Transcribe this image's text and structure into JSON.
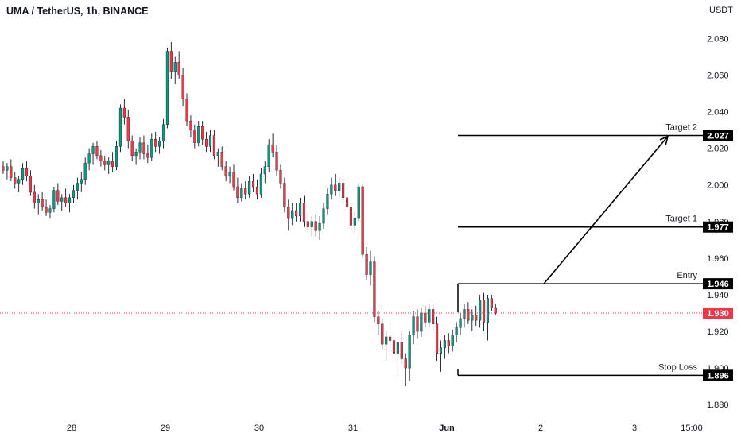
{
  "header": {
    "title": "UMA / TetherUS, 1h, BINANCE"
  },
  "chart_data": {
    "type": "candlestick",
    "title": "UMA / TetherUS, 1h, BINANCE",
    "price_unit": "USDT",
    "ylim": [
      1.874,
      2.088
    ],
    "y_ticks": [
      "2.080",
      "2.060",
      "2.040",
      "2.020",
      "2.000",
      "1.980",
      "1.960",
      "1.940",
      "1.920",
      "1.900",
      "1.880"
    ],
    "x_ticks": [
      "28",
      "29",
      "30",
      "31",
      "Jun",
      "2",
      "3",
      "15:00"
    ],
    "colors": {
      "up": "#089981",
      "down": "#f23645",
      "text": "#131722",
      "line": "#000000",
      "current": "#f23645"
    },
    "current_price": {
      "value": 1.93,
      "label": "1.930"
    },
    "levels": [
      {
        "name": "Target 2",
        "value": 2.027,
        "label": "2.027"
      },
      {
        "name": "Target 1",
        "value": 1.977,
        "label": "1.977"
      },
      {
        "name": "Entry",
        "value": 1.946,
        "label": "1.946"
      },
      {
        "name": "Stop Loss",
        "value": 1.896,
        "label": "1.896"
      }
    ],
    "projection": {
      "from_level": "Entry",
      "to_level": "Target 2"
    },
    "candles": [
      [
        2.01,
        2.013,
        2.006,
        2.008
      ],
      [
        2.008,
        2.012,
        2.003,
        2.01
      ],
      [
        2.01,
        2.014,
        2.002,
        2.004
      ],
      [
        2.004,
        2.007,
        1.998,
        2.001
      ],
      [
        2.001,
        2.005,
        1.996,
        2.003
      ],
      [
        2.003,
        2.012,
        2.0,
        2.009
      ],
      [
        2.009,
        2.013,
        2.002,
        2.005
      ],
      [
        2.005,
        2.008,
        1.994,
        1.996
      ],
      [
        1.996,
        2.0,
        1.987,
        1.99
      ],
      [
        1.99,
        1.995,
        1.984,
        1.992
      ],
      [
        1.992,
        1.996,
        1.986,
        1.988
      ],
      [
        1.988,
        1.992,
        1.983,
        1.985
      ],
      [
        1.985,
        1.989,
        1.982,
        1.987
      ],
      [
        1.987,
        1.999,
        1.985,
        1.997
      ],
      [
        1.997,
        2.001,
        1.989,
        1.991
      ],
      [
        1.991,
        1.995,
        1.986,
        1.993
      ],
      [
        1.993,
        1.998,
        1.988,
        1.99
      ],
      [
        1.99,
        1.995,
        1.985,
        1.993
      ],
      [
        1.993,
        2.0,
        1.99,
        1.997
      ],
      [
        1.997,
        2.004,
        1.992,
        2.001
      ],
      [
        2.001,
        2.007,
        1.996,
        2.003
      ],
      [
        2.003,
        2.015,
        2.0,
        2.012
      ],
      [
        2.012,
        2.02,
        2.008,
        2.017
      ],
      [
        2.017,
        2.023,
        2.011,
        2.021
      ],
      [
        2.021,
        2.024,
        2.014,
        2.016
      ],
      [
        2.016,
        2.019,
        2.01,
        2.013
      ],
      [
        2.013,
        2.016,
        2.008,
        2.011
      ],
      [
        2.011,
        2.015,
        2.006,
        2.013
      ],
      [
        2.013,
        2.018,
        2.007,
        2.01
      ],
      [
        2.01,
        2.024,
        2.008,
        2.021
      ],
      [
        2.021,
        2.044,
        2.018,
        2.042
      ],
      [
        2.042,
        2.047,
        2.033,
        2.037
      ],
      [
        2.037,
        2.041,
        2.02,
        2.024
      ],
      [
        2.024,
        2.027,
        2.013,
        2.016
      ],
      [
        2.016,
        2.02,
        2.011,
        2.018
      ],
      [
        2.018,
        2.026,
        2.014,
        2.023
      ],
      [
        2.023,
        2.027,
        2.014,
        2.017
      ],
      [
        2.017,
        2.022,
        2.012,
        2.015
      ],
      [
        2.015,
        2.028,
        2.013,
        2.025
      ],
      [
        2.025,
        2.029,
        2.018,
        2.021
      ],
      [
        2.021,
        2.026,
        2.017,
        2.024
      ],
      [
        2.024,
        2.036,
        2.02,
        2.033
      ],
      [
        2.033,
        2.075,
        2.031,
        2.073
      ],
      [
        2.073,
        2.078,
        2.058,
        2.062
      ],
      [
        2.062,
        2.07,
        2.055,
        2.067
      ],
      [
        2.067,
        2.073,
        2.058,
        2.06
      ],
      [
        2.06,
        2.064,
        2.043,
        2.047
      ],
      [
        2.047,
        2.05,
        2.032,
        2.035
      ],
      [
        2.035,
        2.038,
        2.026,
        2.03
      ],
      [
        2.03,
        2.033,
        2.02,
        2.023
      ],
      [
        2.023,
        2.035,
        2.021,
        2.032
      ],
      [
        2.032,
        2.035,
        2.022,
        2.025
      ],
      [
        2.025,
        2.029,
        2.018,
        2.021
      ],
      [
        2.021,
        2.03,
        2.018,
        2.027
      ],
      [
        2.027,
        2.03,
        2.014,
        2.016
      ],
      [
        2.016,
        2.02,
        2.01,
        2.018
      ],
      [
        2.018,
        2.021,
        2.008,
        2.01
      ],
      [
        2.01,
        2.013,
        2.002,
        2.005
      ],
      [
        2.005,
        2.01,
        2.001,
        2.007
      ],
      [
        2.007,
        2.011,
        1.997,
        1.999
      ],
      [
        1.999,
        2.004,
        1.99,
        1.993
      ],
      [
        1.993,
        2.001,
        1.991,
        1.998
      ],
      [
        1.998,
        2.002,
        1.992,
        1.995
      ],
      [
        1.995,
        2.005,
        1.993,
        2.002
      ],
      [
        2.002,
        2.006,
        1.996,
        1.999
      ],
      [
        1.999,
        2.003,
        1.992,
        1.995
      ],
      [
        1.995,
        2.009,
        1.993,
        2.006
      ],
      [
        2.006,
        2.013,
        2.001,
        2.01
      ],
      [
        2.01,
        2.025,
        2.007,
        2.022
      ],
      [
        2.022,
        2.028,
        2.015,
        2.018
      ],
      [
        2.018,
        2.022,
        2.005,
        2.008
      ],
      [
        2.008,
        2.011,
        1.998,
        2.001
      ],
      [
        2.001,
        2.004,
        1.985,
        1.988
      ],
      [
        1.988,
        1.992,
        1.975,
        1.982
      ],
      [
        1.982,
        1.99,
        1.978,
        1.986
      ],
      [
        1.986,
        1.99,
        1.98,
        1.983
      ],
      [
        1.983,
        1.993,
        1.98,
        1.99
      ],
      [
        1.99,
        1.994,
        1.977,
        1.98
      ],
      [
        1.98,
        1.985,
        1.974,
        1.977
      ],
      [
        1.977,
        1.983,
        1.972,
        1.98
      ],
      [
        1.98,
        1.984,
        1.972,
        1.975
      ],
      [
        1.975,
        1.983,
        1.97,
        1.979
      ],
      [
        1.979,
        1.99,
        1.976,
        1.987
      ],
      [
        1.987,
        1.998,
        1.984,
        1.995
      ],
      [
        1.995,
        2.004,
        1.992,
        2.0
      ],
      [
        2.0,
        2.006,
        1.994,
        1.997
      ],
      [
        1.997,
        2.004,
        1.993,
        2.001
      ],
      [
        2.001,
        2.005,
        1.99,
        1.993
      ],
      [
        1.993,
        1.998,
        1.985,
        1.988
      ],
      [
        1.988,
        1.995,
        1.968,
        1.978
      ],
      [
        1.978,
        1.985,
        1.974,
        1.982
      ],
      [
        1.982,
        2.001,
        1.98,
        1.999
      ],
      [
        1.999,
        2.0,
        1.96,
        1.962
      ],
      [
        1.962,
        1.966,
        1.948,
        1.951
      ],
      [
        1.951,
        1.964,
        1.945,
        1.958
      ],
      [
        1.958,
        1.961,
        1.925,
        1.928
      ],
      [
        1.928,
        1.931,
        1.918,
        1.924
      ],
      [
        1.924,
        1.927,
        1.91,
        1.913
      ],
      [
        1.913,
        1.92,
        1.904,
        1.917
      ],
      [
        1.917,
        1.924,
        1.909,
        1.915
      ],
      [
        1.915,
        1.919,
        1.905,
        1.908
      ],
      [
        1.908,
        1.917,
        1.896,
        1.914
      ],
      [
        1.914,
        1.92,
        1.902,
        1.905
      ],
      [
        1.905,
        1.908,
        1.89,
        1.9
      ],
      [
        1.9,
        1.92,
        1.893,
        1.918
      ],
      [
        1.918,
        1.931,
        1.913,
        1.928
      ],
      [
        1.928,
        1.932,
        1.916,
        1.92
      ],
      [
        1.92,
        1.933,
        1.917,
        1.93
      ],
      [
        1.93,
        1.934,
        1.922,
        1.925
      ],
      [
        1.925,
        1.935,
        1.922,
        1.932
      ],
      [
        1.932,
        1.935,
        1.92,
        1.924
      ],
      [
        1.924,
        1.928,
        1.904,
        1.908
      ],
      [
        1.908,
        1.915,
        1.898,
        1.911
      ],
      [
        1.911,
        1.918,
        1.905,
        1.915
      ],
      [
        1.915,
        1.919,
        1.908,
        1.912
      ],
      [
        1.912,
        1.921,
        1.909,
        1.918
      ],
      [
        1.918,
        1.925,
        1.914,
        1.922
      ],
      [
        1.922,
        1.93,
        1.918,
        1.927
      ],
      [
        1.927,
        1.935,
        1.922,
        1.932
      ],
      [
        1.932,
        1.936,
        1.924,
        1.926
      ],
      [
        1.926,
        1.932,
        1.92,
        1.929
      ],
      [
        1.929,
        1.934,
        1.923,
        1.926
      ],
      [
        1.926,
        1.94,
        1.922,
        1.937
      ],
      [
        1.937,
        1.941,
        1.92,
        1.925
      ],
      [
        1.925,
        1.94,
        1.915,
        1.938
      ],
      [
        1.938,
        1.94,
        1.931,
        1.933
      ],
      [
        1.933,
        1.935,
        1.929,
        1.93
      ]
    ]
  }
}
